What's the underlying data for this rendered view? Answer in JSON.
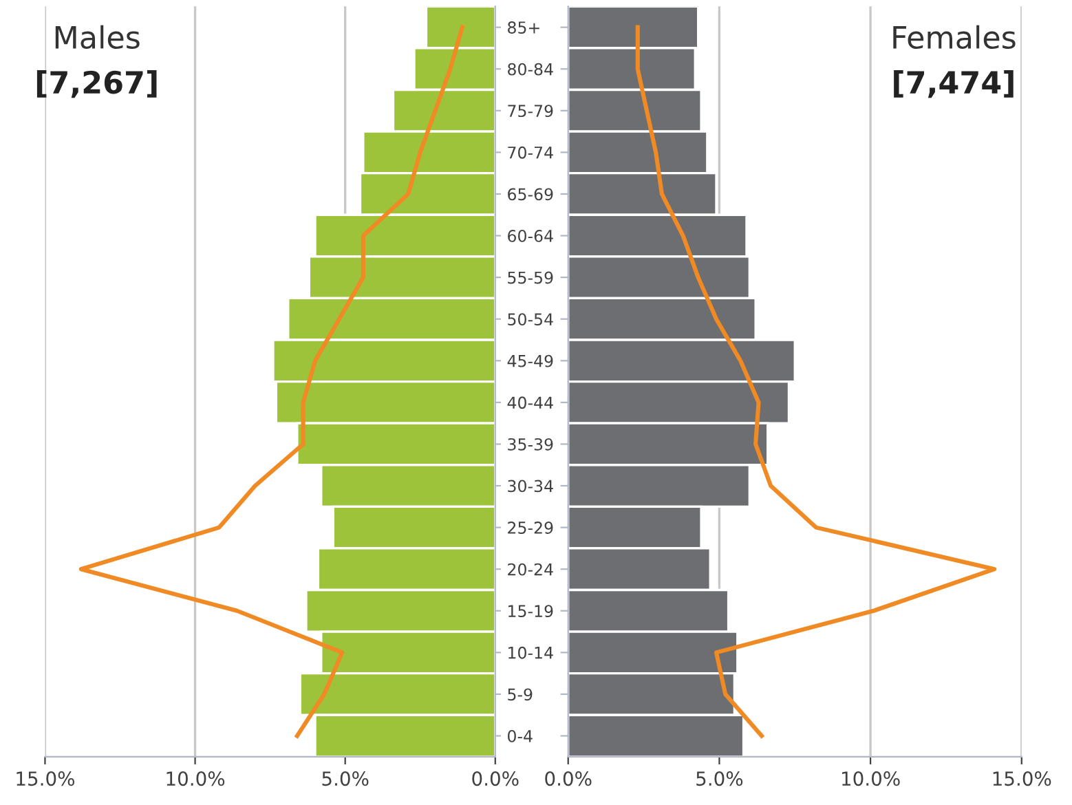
{
  "chart_data": [
    {
      "type": "bar",
      "orientation": "horizontal",
      "title": "Males",
      "subtitle": "[7,267]",
      "categories": [
        "85+",
        "80-84",
        "75-79",
        "70-74",
        "65-69",
        "60-64",
        "55-59",
        "50-54",
        "45-49",
        "40-44",
        "35-39",
        "30-34",
        "25-29",
        "20-24",
        "15-19",
        "10-14",
        "5-9",
        "0-4"
      ],
      "series": [
        {
          "color": "#9dc33b",
          "values": [
            2.3,
            2.7,
            3.4,
            4.4,
            4.5,
            6.0,
            6.2,
            6.9,
            7.4,
            7.3,
            6.6,
            5.8,
            5.4,
            5.9,
            6.3,
            5.8,
            6.5,
            6.0
          ]
        },
        {
          "type": "line",
          "color": "#f08a24",
          "values": [
            1.1,
            1.5,
            2.0,
            2.5,
            2.9,
            4.4,
            4.4,
            5.2,
            6.0,
            6.4,
            6.4,
            8.0,
            9.2,
            13.8,
            8.6,
            5.1,
            5.7,
            6.6
          ]
        }
      ],
      "xlim": [
        15,
        0
      ],
      "xticks": [
        {
          "value": 15,
          "label": "15.0%"
        },
        {
          "value": 10,
          "label": "10.0%"
        },
        {
          "value": 5,
          "label": "5.0%"
        },
        {
          "value": 0,
          "label": "0.0%"
        }
      ],
      "grid": "x",
      "marker": "none",
      "line_style": "solid"
    },
    {
      "type": "bar",
      "orientation": "horizontal",
      "title": "Females",
      "subtitle": "[7,474]",
      "categories": [
        null,
        null,
        null,
        null,
        null,
        null,
        null,
        null,
        null,
        null,
        null,
        null,
        null,
        null,
        null,
        null,
        null,
        null
      ],
      "series": [
        {
          "color": "#6d6e71",
          "values": [
            4.3,
            4.2,
            4.4,
            4.6,
            4.9,
            5.9,
            6.0,
            6.2,
            7.5,
            7.3,
            6.6,
            6.0,
            4.4,
            4.7,
            5.3,
            5.6,
            5.5,
            5.8
          ]
        },
        {
          "type": "line",
          "color": "#f08a24",
          "values": [
            2.3,
            2.3,
            2.6,
            2.9,
            3.1,
            3.8,
            4.3,
            4.9,
            5.7,
            6.3,
            6.2,
            6.7,
            8.2,
            14.1,
            10.1,
            4.9,
            5.2,
            6.4
          ]
        }
      ],
      "xlim": [
        0,
        15
      ],
      "xticks": [
        {
          "value": 0,
          "label": "0.0%"
        },
        {
          "value": 5,
          "label": "5.0%"
        },
        {
          "value": 10,
          "label": "10.0%"
        },
        {
          "value": 15,
          "label": "15.0%"
        }
      ],
      "grid": "x",
      "marker": "none",
      "line_style": "solid",
      "tick_labels": "x"
    }
  ]
}
